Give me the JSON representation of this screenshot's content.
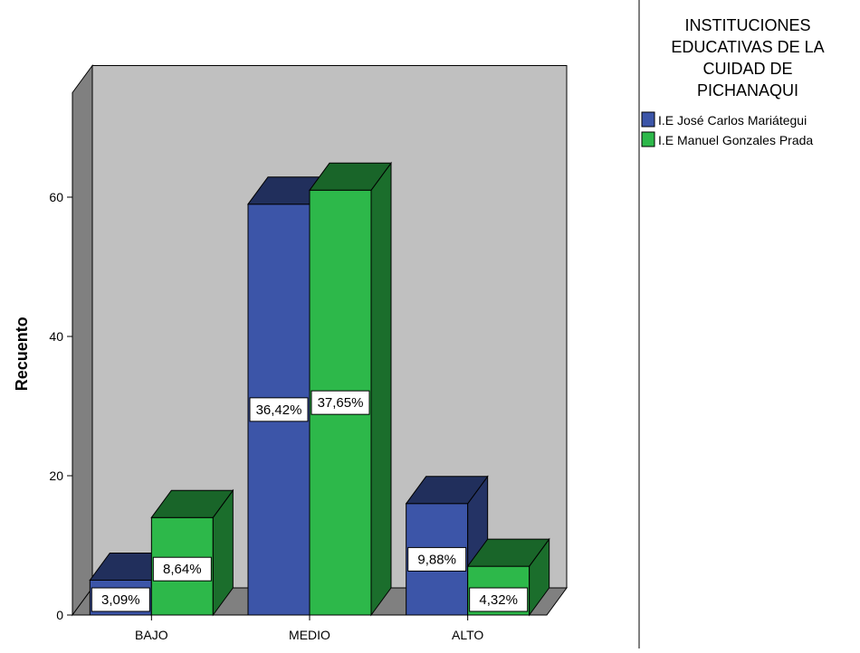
{
  "chart_data": {
    "type": "bar",
    "title": "",
    "xlabel": "",
    "ylabel": "Recuento",
    "ylim": [
      0,
      75
    ],
    "yticks": [
      0,
      20,
      40,
      60
    ],
    "categories": [
      "BAJO",
      "MEDIO",
      "ALTO"
    ],
    "legend": {
      "title_lines": [
        "INSTITUCIONES",
        "EDUCATIVAS DE LA",
        "CUIDAD DE",
        "PICHANAQUI"
      ],
      "placement": "right"
    },
    "series": [
      {
        "name": "I.E José Carlos Mariátegui",
        "color": "#3c55a8",
        "values": [
          5,
          59,
          16
        ],
        "labels": [
          "3,09%",
          "36,42%",
          "9,88%"
        ]
      },
      {
        "name": "I.E Manuel Gonzales Prada",
        "color": "#2db84a",
        "values": [
          14,
          61,
          7
        ],
        "labels": [
          "8,64%",
          "37,65%",
          "4,32%"
        ]
      }
    ],
    "grid": false,
    "style": "3d-bars",
    "wall_color": "#c0c0c0"
  }
}
